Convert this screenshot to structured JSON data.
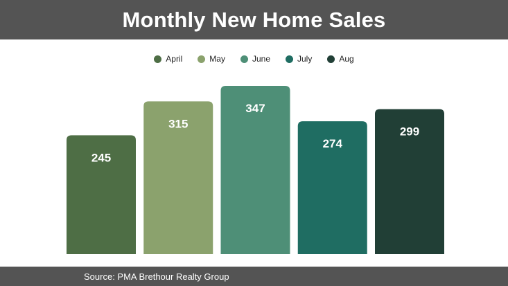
{
  "title": "Monthly New Home Sales",
  "source": "Source: PMA Brethour Realty Group",
  "colors": {
    "header_bg": "#545454",
    "April": "#4e6e45",
    "May": "#8ba26d",
    "June": "#4e8f77",
    "July": "#1f6d62",
    "Aug": "#213f36"
  },
  "chart_data": {
    "type": "bar",
    "title": "Monthly New Home Sales",
    "categories": [
      "April",
      "May",
      "June",
      "July",
      "Aug"
    ],
    "values": [
      245,
      315,
      347,
      274,
      299
    ],
    "data_labels": [
      "245",
      "315",
      "347",
      "274",
      "299"
    ],
    "colors": [
      "#4e6e45",
      "#8ba26d",
      "#4e8f77",
      "#1f6d62",
      "#213f36"
    ],
    "legend": [
      "April",
      "May",
      "June",
      "July",
      "Aug"
    ],
    "legend_position": "top-center",
    "xlabel": "",
    "ylabel": "",
    "ylim": [
      0,
      347
    ],
    "grid": false,
    "axes_visible": false
  }
}
